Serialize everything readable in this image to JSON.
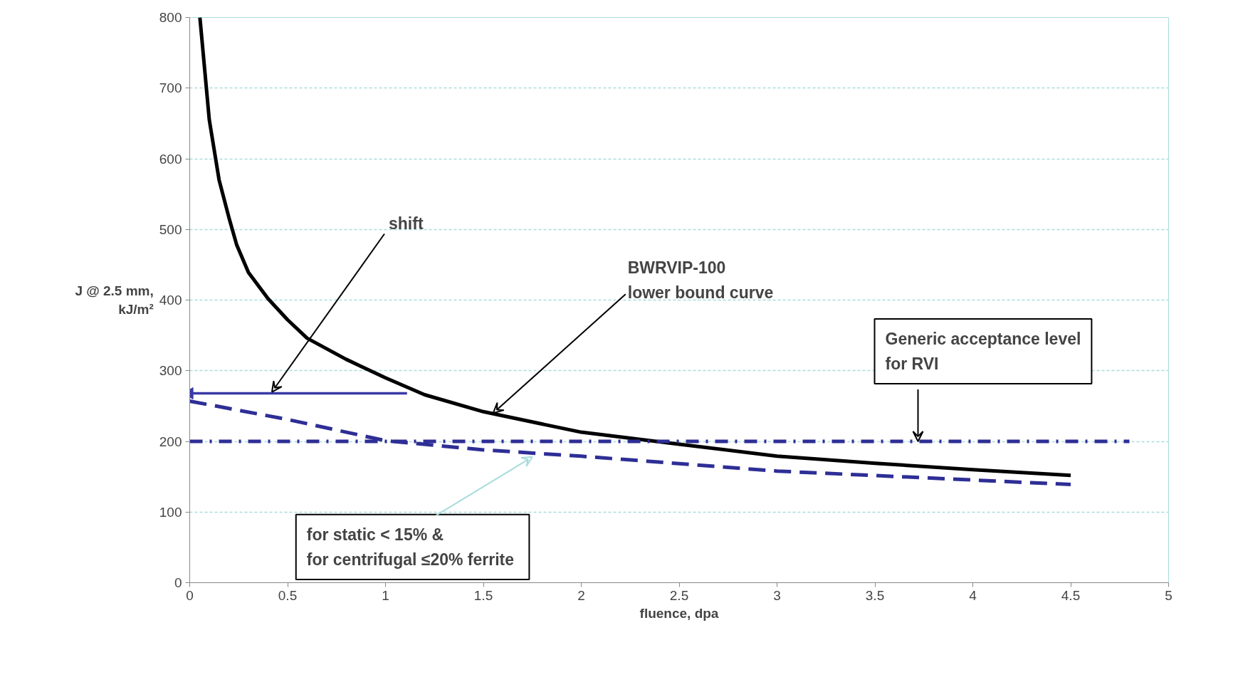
{
  "chart_data": {
    "type": "line",
    "xlabel": "fluence, dpa",
    "ylabel": "J @ 2.5 mm,\nkJ/m²",
    "xlim": [
      0,
      5
    ],
    "ylim": [
      0,
      800
    ],
    "xticks": [
      0,
      0.5,
      1,
      1.5,
      2,
      2.5,
      3,
      3.5,
      4,
      4.5,
      5
    ],
    "yticks": [
      0,
      100,
      200,
      300,
      400,
      500,
      600,
      700,
      800
    ],
    "grid": "y",
    "series": [
      {
        "color": "#000000",
        "line_style": "solid",
        "x": [
          0.052,
          0.1,
          0.15,
          0.2,
          0.24,
          0.3,
          0.4,
          0.5,
          0.6,
          0.8,
          1.0,
          1.2,
          1.5,
          2.0,
          2.5,
          3.0,
          3.5,
          4.0,
          4.5
        ],
        "values": [
          800,
          655,
          570,
          517,
          478,
          439,
          402,
          372,
          346,
          316,
          290,
          266,
          242,
          213,
          196,
          179,
          169,
          160,
          152
        ]
      },
      {
        "color": "#2e2e96",
        "line_style": "dashed",
        "x": [
          0,
          0.5,
          1.0,
          1.5,
          2.0,
          3.0,
          4.5
        ],
        "values": [
          257,
          231,
          201,
          188,
          179,
          158,
          139
        ]
      },
      {
        "color": "#2e2e96",
        "line_style": "dashdot",
        "x": [
          0,
          4.8
        ],
        "values": [
          200,
          200
        ]
      },
      {
        "color": "#3a3aa8",
        "line_style": "solid",
        "x": [
          1.11,
          0
        ],
        "values": [
          268,
          268
        ]
      }
    ],
    "annotations": [
      {
        "text": "shift",
        "x": 0.42,
        "y": 270
      },
      {
        "text": "BWRVIP-100\nlower bound  curve",
        "x": 1.55,
        "y": 240
      },
      {
        "text": "Generic acceptance level\nfor RVI",
        "x": 3.72,
        "y": 200
      },
      {
        "text": "for static < 15% &\nfor centrifugal  ≤20% ferrite",
        "x": 1.75,
        "y": 178
      }
    ]
  }
}
